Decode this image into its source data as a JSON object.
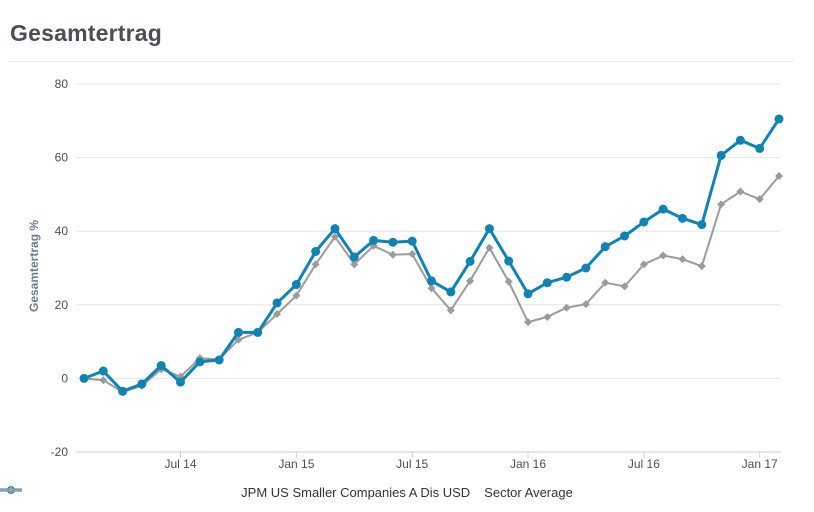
{
  "page": {
    "title": "Gesamtertrag"
  },
  "legend": [
    {
      "name": "JPM US Smaller Companies A Dis USD",
      "color": "#0f84b4",
      "marker": "circle"
    },
    {
      "name": "Sector Average",
      "color": "#9b9b9b",
      "marker": "diamond"
    }
  ],
  "chart_data": {
    "type": "line",
    "title": "",
    "xlabel": "",
    "ylabel": "Gesamtertrag %",
    "ylim": [
      -20,
      80
    ],
    "yticks": [
      -20,
      0,
      20,
      40,
      60,
      80
    ],
    "xticks": [
      "Jul 14",
      "Jan 15",
      "Jul 15",
      "Jan 16",
      "Jul 16",
      "Jan 17"
    ],
    "grid": "horizontal",
    "legend_position": "bottom",
    "x": [
      "Feb 14",
      "Mar 14",
      "Apr 14",
      "May 14",
      "Jun 14",
      "Jul 14",
      "Aug 14",
      "Sep 14",
      "Oct 14",
      "Nov 14",
      "Dec 14",
      "Jan 15",
      "Feb 15",
      "Mar 15",
      "Apr 15",
      "May 15",
      "Jun 15",
      "Jul 15",
      "Aug 15",
      "Sep 15",
      "Oct 15",
      "Nov 15",
      "Dec 15",
      "Jan 16",
      "Feb 16",
      "Mar 16",
      "Apr 16",
      "May 16",
      "Jun 16",
      "Jul 16",
      "Aug 16",
      "Sep 16",
      "Oct 16",
      "Nov 16",
      "Dec 16",
      "Jan 17",
      "Feb 17"
    ],
    "series": [
      {
        "name": "JPM US Smaller Companies A Dis USD",
        "color": "#0f84b4",
        "values": [
          0,
          2,
          -3.5,
          -1.5,
          3.5,
          -1,
          4.5,
          5,
          12.5,
          12.5,
          20.5,
          25.5,
          34.5,
          40.7,
          33,
          37.5,
          37,
          37.3,
          26.5,
          23.5,
          31.8,
          40.7,
          31.9,
          23,
          26,
          27.5,
          30,
          35.8,
          38.7,
          42.5,
          46,
          43.5,
          41.8,
          60.6,
          64.7,
          62.5,
          70.5
        ]
      },
      {
        "name": "Sector Average",
        "color": "#9b9b9b",
        "values": [
          0,
          -0.5,
          -3.7,
          -2,
          2.5,
          0.5,
          5.5,
          5.2,
          10.5,
          12.5,
          17.5,
          22.5,
          31,
          38.5,
          31,
          36,
          33.6,
          33.8,
          24.5,
          18.5,
          26.5,
          35.5,
          26.3,
          15.3,
          16.7,
          19.2,
          20.2,
          26,
          25,
          31,
          33.4,
          32.4,
          30.5,
          47.3,
          50.8,
          48.7,
          55
        ]
      }
    ]
  }
}
